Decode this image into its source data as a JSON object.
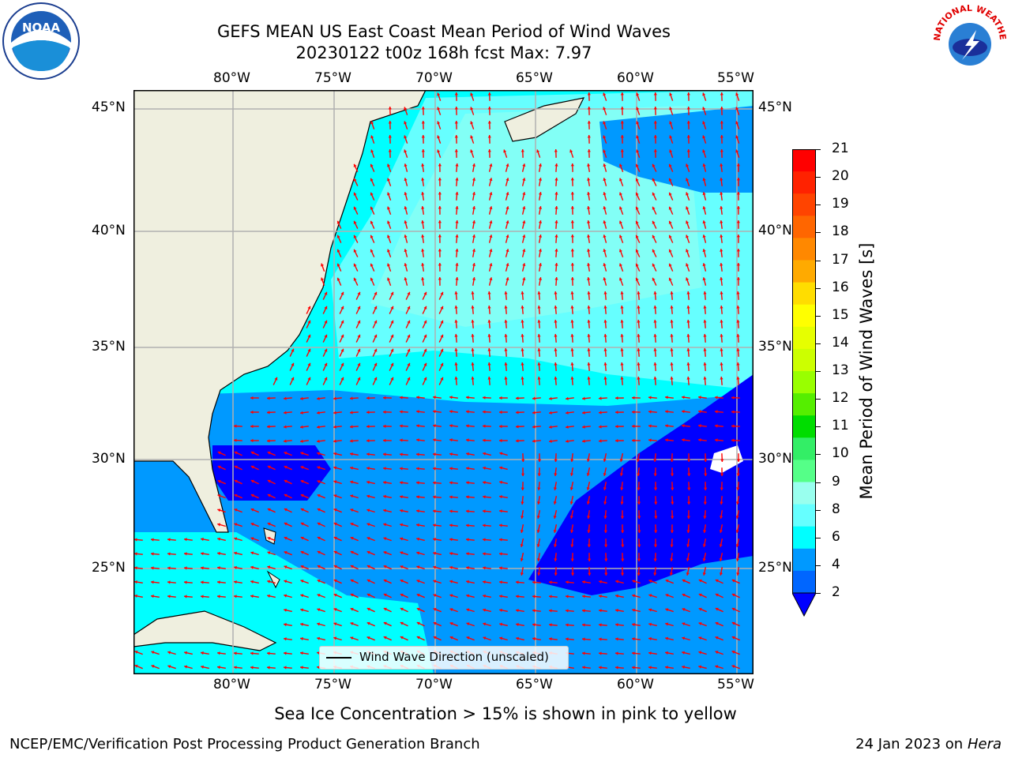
{
  "title": {
    "line1": "GEFS MEAN US East Coast Mean Period of Wind Waves",
    "line2": "20230122 t00z 168h fcst   Max: 7.97"
  },
  "logos": {
    "left": {
      "name": "noaa-logo",
      "text": "NOAA"
    },
    "right": {
      "name": "national-weather-service-logo",
      "text": "NATIONAL WEATHER SERVICE"
    }
  },
  "map": {
    "lon_ticks": [
      "80°W",
      "75°W",
      "70°W",
      "65°W",
      "60°W",
      "55°W"
    ],
    "lat_ticks": [
      "45°N",
      "40°N",
      "35°N",
      "30°N",
      "25°N"
    ],
    "legend_label": "Wind Wave Direction (unscaled)",
    "land_color": "#efefdf",
    "arrow_color": "#ff0000",
    "grid_color": "#b0b0b0"
  },
  "colorbar": {
    "label": "Mean Period of Wind Waves [s]",
    "ticks": [
      "21",
      "20",
      "19",
      "18",
      "17",
      "16",
      "15",
      "14",
      "13",
      "12",
      "11",
      "10",
      "9",
      "8",
      "6",
      "4",
      "2"
    ],
    "colors": [
      "#ff0000",
      "#ff2200",
      "#ff4400",
      "#ff6600",
      "#ff8800",
      "#ffaa00",
      "#ffdd00",
      "#ffff00",
      "#e6ff00",
      "#ccff00",
      "#99ff00",
      "#55ee00",
      "#00dd00",
      "#33ee66",
      "#55ff88",
      "#99ffee",
      "#66ffff",
      "#00ffff",
      "#0099ff",
      "#0066ff"
    ],
    "extend_color": "#0000ff"
  },
  "caption": "Sea Ice Concentration > 15% is shown in pink to yellow",
  "footer": {
    "left": "NCEP/EMC/Verification Post Processing Product Generation Branch",
    "date": "24 Jan 2023 on ",
    "machine": "Hera"
  }
}
